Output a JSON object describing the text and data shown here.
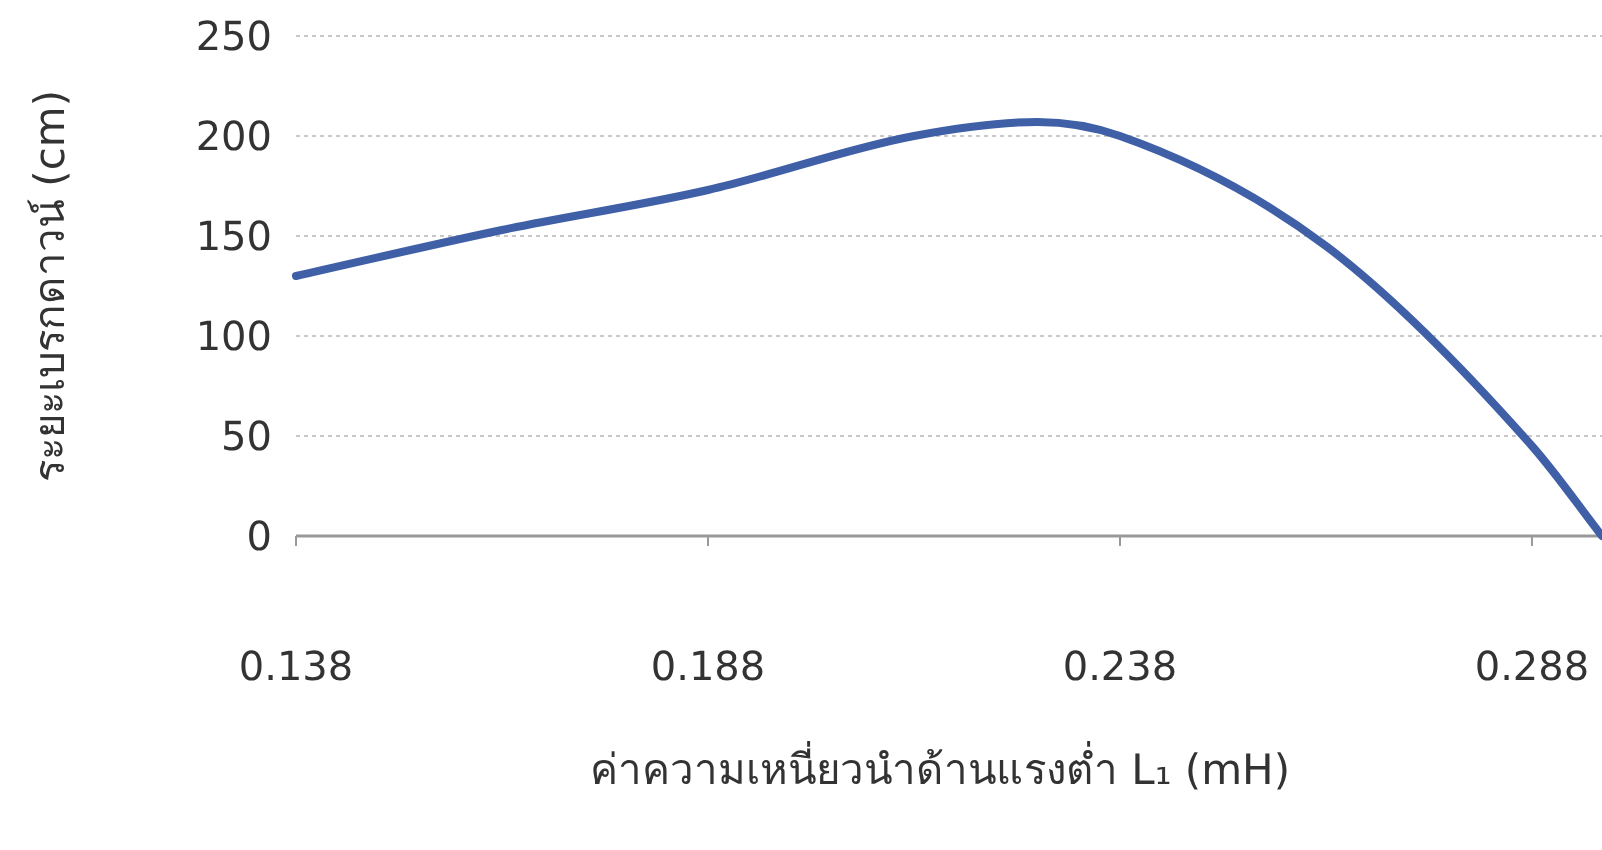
{
  "chart_data": {
    "type": "line",
    "xlabel": "ค่าความเหนี่ยวนำด้านแรงต่ำ L₁ (mH)",
    "ylabel": "ระยะเบรกดาวน์ (cm)",
    "x": [
      0.138,
      0.163,
      0.188,
      0.213,
      0.228,
      0.238,
      0.263,
      0.288,
      0.2965
    ],
    "series": [
      {
        "color": "#3f5fa6",
        "values": [
          130,
          153,
          173,
          200,
          207,
          200,
          145,
          45,
          0
        ]
      }
    ],
    "xlim": [
      0.138,
      0.2965
    ],
    "xticks": [
      0.138,
      0.188,
      0.238,
      0.288
    ],
    "ylim": [
      0,
      250
    ],
    "yticks": [
      0,
      50,
      100,
      150,
      200,
      250
    ],
    "grid": "y",
    "marker": "none",
    "line_style": "solid"
  }
}
